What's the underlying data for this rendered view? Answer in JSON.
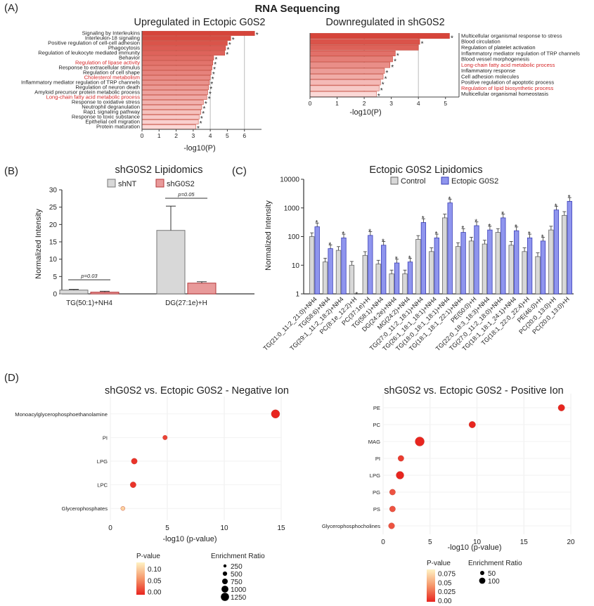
{
  "figure_title": "RNA Sequencing",
  "panels": {
    "A": "(A)",
    "B": "(B)",
    "C": "(C)",
    "D": "(D)"
  },
  "colors": {
    "bar_dark": "#d6443a",
    "bar_light": "#fbd8d6",
    "bar_stroke": "#c0392b",
    "grey_bar": "#d8d8d8",
    "pink_bar": "#e89a9a",
    "blue_bar": "#8f95ee",
    "highlight_text": "#d62728"
  },
  "chart_data": [
    {
      "type": "bar",
      "orientation": "horizontal",
      "title": "Upregulated in Ectopic G0S2",
      "xlabel": "-log10(P)",
      "xlim": [
        0,
        7
      ],
      "xticks": [
        0,
        1,
        2,
        3,
        4,
        5,
        6
      ],
      "gridlines": [
        2,
        4,
        6
      ],
      "categories": [
        "Signaling by Interleukins",
        "Interleukin-18 signaling",
        "Positive regulation of cell-cell adhesion",
        "Phagocytosis",
        "Regulation of leukocyte mediated immunity",
        "Behavior",
        "Regulation of lipase activity",
        "Response to extracellular stimulus",
        "Regulation of cell shape",
        "Cholesterol metabolism",
        "Inflammatory mediator regulation of TRP channels",
        "Regulation of neuron death",
        "Amyloid precursor protein metabolic process",
        "Long-chain fatty acid metabolic process",
        "Response to oxidative stress",
        "Neutrophil degranulation",
        "Rap1 signaling pathway",
        "Response to toxic substance",
        "Epithelial cell migration",
        "Protein maturation"
      ],
      "values": [
        6.6,
        5.2,
        5.0,
        4.9,
        4.85,
        4.2,
        4.15,
        4.1,
        4.05,
        4.0,
        3.95,
        3.9,
        3.85,
        3.8,
        3.6,
        3.5,
        3.45,
        3.35,
        3.3,
        3.15
      ],
      "significant": [
        true,
        true,
        true,
        true,
        true,
        true,
        true,
        true,
        true,
        true,
        true,
        true,
        true,
        true,
        true,
        true,
        true,
        true,
        true,
        true
      ],
      "highlighted": [
        "Regulation of lipase activity",
        "Cholesterol metabolism",
        "Long-chain fatty acid metabolic process"
      ],
      "star": "*"
    },
    {
      "type": "bar",
      "orientation": "horizontal",
      "title": "Downregulated in shG0S2",
      "xlabel": "-log10(P)",
      "xlim": [
        0,
        5.5
      ],
      "xticks": [
        0,
        1,
        2,
        3,
        4,
        5
      ],
      "gridlines": [
        2,
        4
      ],
      "categories": [
        "Multicellular organismal response to stress",
        "Blood circulation",
        "Regulation of platelet activation",
        "Inflammatory mediator regulation of TRP channels",
        "Blood vessel morphogenesis",
        "Long-chain fatty acid metabolic process",
        "Inflammatory response",
        "Cell adhesion molecules",
        "Positive regulation of apoptotic process",
        "Regulation of lipid biosynthetic process",
        "Multicellular organismal homeostasis"
      ],
      "values": [
        5.15,
        4.05,
        4.0,
        3.15,
        3.05,
        2.95,
        2.75,
        2.7,
        2.6,
        2.55,
        2.45
      ],
      "significant": [
        true,
        true,
        false,
        true,
        true,
        true,
        true,
        true,
        true,
        true,
        true
      ],
      "highlighted": [
        "Long-chain fatty acid metabolic process",
        "Regulation of lipid biosynthetic process"
      ],
      "star": "*"
    },
    {
      "type": "bar",
      "title": "shG0S2 Lipidomics",
      "ylabel": "Normalized Intensity",
      "ylim": [
        0,
        30
      ],
      "yticks": [
        0,
        5,
        10,
        15,
        20,
        25,
        30
      ],
      "categories": [
        "TG(50:1)+NH4",
        "DG(27:1e)+H"
      ],
      "series": [
        {
          "name": "shNT",
          "values": [
            1.1,
            18.3
          ],
          "errors": [
            0.2,
            7.0
          ]
        },
        {
          "name": "shG0S2",
          "values": [
            0.5,
            3.1
          ],
          "errors": [
            0.25,
            0.4
          ]
        }
      ],
      "pvalues": [
        "p=0.03",
        "p=0.05"
      ],
      "legend": "top"
    },
    {
      "type": "bar",
      "title": "Ectopic G0S2 Lipidomics",
      "ylabel": "Normalized Intensity",
      "yscale": "log",
      "ylim": [
        1,
        10000
      ],
      "yticks": [
        "1",
        "10",
        "100",
        "1000",
        "10000"
      ],
      "categories": [
        "TG(21:0_11:2_21:0)+NH4",
        "TG(58:6)+NH4",
        "TG(29:1_11:2_18:2)+NH4",
        "PC(8:1e_12:2)+H",
        "PC(37:1e)+H",
        "TG(58:1)+NH4",
        "DG(24:2e)+NH4",
        "MG(24:2)+NH4",
        "TG(27:0_11:2_18:1)+NH4",
        "TG(26:1_18:1_18:1)+NH4",
        "TG(18:0_18:1_18:1)+NH4",
        "TG(18:1_18:1_22:1)+NH4",
        "PE(50:0)+H",
        "TG(22:0_18:3_18:3)+NH4",
        "TG(27:0_11:2_18:0)+NH4",
        "TG(18:1_18:1_24:1)+NH4",
        "TG(18:1_22:0_22:4)+H",
        "PE(46:0)+H",
        "PC(20:0_13:0)+H",
        "PC(20:0_13:0)+H"
      ],
      "series": [
        {
          "name": "Control",
          "values": [
            100,
            13,
            33,
            10,
            22,
            11,
            5,
            5,
            80,
            30,
            450,
            45,
            70,
            55,
            140,
            50,
            30,
            20,
            170,
            550
          ]
        },
        {
          "name": "Ectopic G0S2",
          "values": [
            220,
            38,
            90,
            0,
            110,
            50,
            12,
            13,
            310,
            90,
            1500,
            140,
            240,
            170,
            450,
            160,
            90,
            70,
            850,
            1700
          ]
        }
      ],
      "significant": [
        true,
        true,
        true,
        true,
        true,
        true,
        true,
        true,
        true,
        true,
        true,
        true,
        true,
        true,
        true,
        true,
        true,
        true,
        true,
        true
      ],
      "legend": "top"
    },
    {
      "type": "scatter",
      "title": "shG0S2 vs. Ectopic G0S2 - Negative Ion",
      "xlabel": "-log10 (p-value)",
      "xlim": [
        0,
        15
      ],
      "xticks": [
        0,
        5,
        10,
        15
      ],
      "categories": [
        "Monoacylglycerophosphoethanolamine",
        "PI",
        "LPG",
        "LPC",
        "Glycerophosphates"
      ],
      "x": [
        14.5,
        4.8,
        2.1,
        2.0,
        1.1
      ],
      "pvalue": [
        0.0,
        0.02,
        0.01,
        0.01,
        0.12
      ],
      "enrichment_ratio": [
        1250,
        150,
        400,
        400,
        100
      ],
      "legend_pvalue_label": "P-value",
      "legend_pvalue_ticks": [
        "0.10",
        "0.05",
        "0.00"
      ],
      "legend_size_label": "Enrichment Ratio",
      "legend_size_ticks": [
        "250",
        "500",
        "750",
        "1000",
        "1250"
      ]
    },
    {
      "type": "scatter",
      "title": "shG0S2 vs. Ectopic G0S2 - Positive Ion",
      "xlabel": "-log10 (p-value)",
      "xlim": [
        0,
        20
      ],
      "xticks": [
        0,
        5,
        10,
        15,
        20
      ],
      "categories": [
        "PE",
        "PC",
        "MAG",
        "PI",
        "LPG",
        "PG",
        "PS",
        "Glycerophosphocholines"
      ],
      "x": [
        19.0,
        9.5,
        3.9,
        1.9,
        1.8,
        1.0,
        1.0,
        0.9
      ],
      "pvalue": [
        0.0,
        0.0,
        0.0,
        0.01,
        0.0,
        0.02,
        0.02,
        0.02
      ],
      "enrichment_ratio": [
        25,
        25,
        110,
        12,
        55,
        12,
        12,
        15
      ],
      "legend_pvalue_label": "P-value",
      "legend_pvalue_ticks": [
        "0.075",
        "0.05",
        "0.025",
        "0.00"
      ],
      "legend_size_label": "Enrichment Ratio",
      "legend_size_ticks": [
        "50",
        "100"
      ]
    }
  ]
}
